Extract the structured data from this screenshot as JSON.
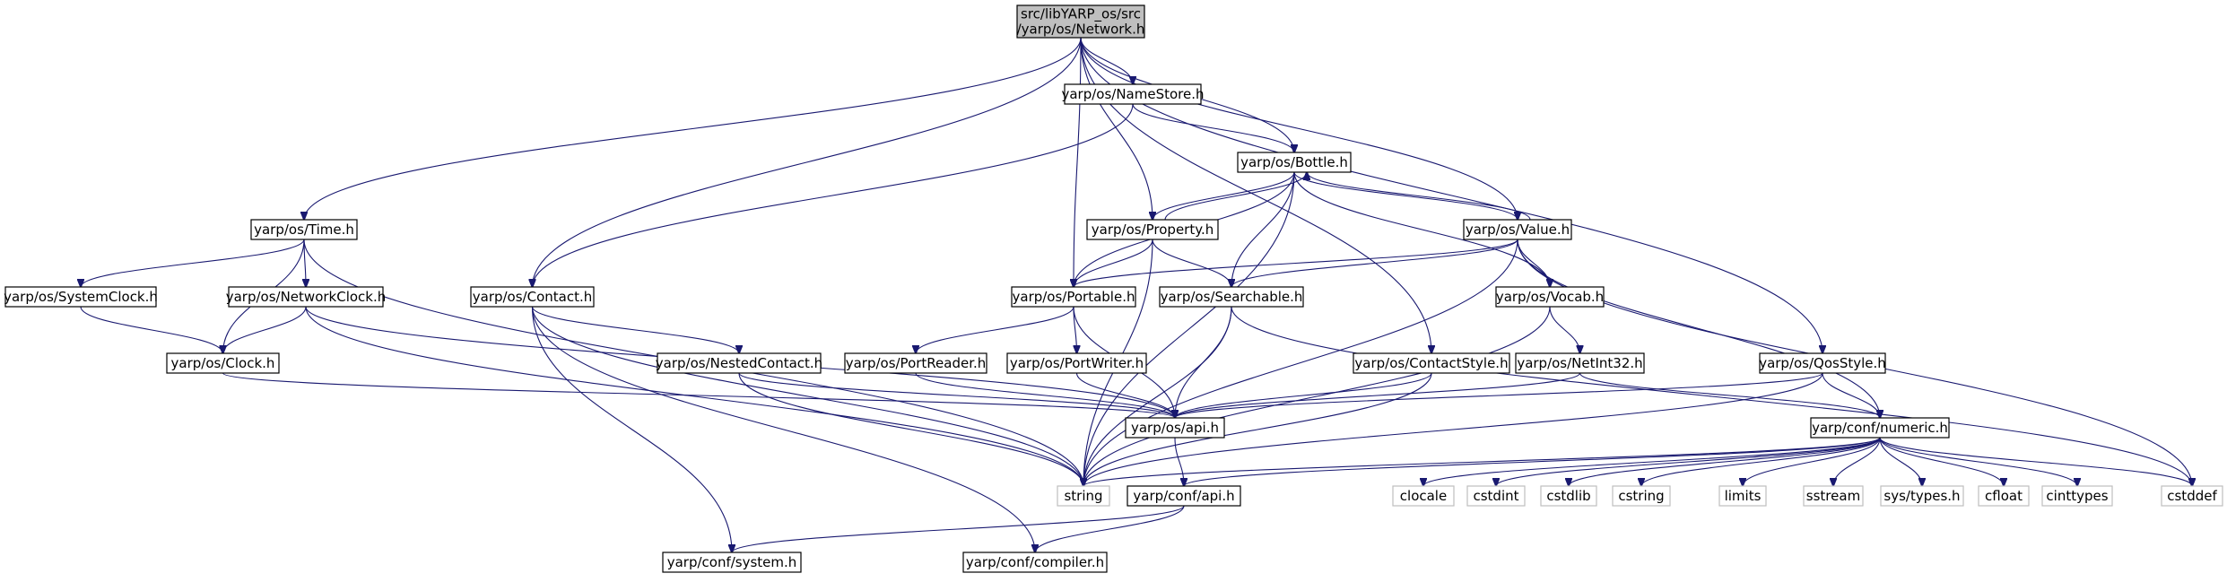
{
  "diagram": {
    "type": "include-dependency-graph",
    "colors": {
      "root_fill": "#bfbfbf",
      "node_border": "#000000",
      "system_border": "#bfbfbf",
      "edge": "#191970",
      "background": "#ffffff"
    },
    "nodes": [
      {
        "id": "network",
        "lines": [
          "src/libYARP_os/src",
          "/yarp/os/Network.h"
        ],
        "kind": "root"
      },
      {
        "id": "namestore",
        "lines": [
          "yarp/os/NameStore.h"
        ],
        "kind": "header"
      },
      {
        "id": "bottle",
        "lines": [
          "yarp/os/Bottle.h"
        ],
        "kind": "header"
      },
      {
        "id": "time",
        "lines": [
          "yarp/os/Time.h"
        ],
        "kind": "header"
      },
      {
        "id": "property",
        "lines": [
          "yarp/os/Property.h"
        ],
        "kind": "header"
      },
      {
        "id": "value",
        "lines": [
          "yarp/os/Value.h"
        ],
        "kind": "header"
      },
      {
        "id": "systemclock",
        "lines": [
          "yarp/os/SystemClock.h"
        ],
        "kind": "header"
      },
      {
        "id": "networkclock",
        "lines": [
          "yarp/os/NetworkClock.h"
        ],
        "kind": "header"
      },
      {
        "id": "contact",
        "lines": [
          "yarp/os/Contact.h"
        ],
        "kind": "header"
      },
      {
        "id": "portable",
        "lines": [
          "yarp/os/Portable.h"
        ],
        "kind": "header"
      },
      {
        "id": "searchable",
        "lines": [
          "yarp/os/Searchable.h"
        ],
        "kind": "header"
      },
      {
        "id": "vocab",
        "lines": [
          "yarp/os/Vocab.h"
        ],
        "kind": "header"
      },
      {
        "id": "clock",
        "lines": [
          "yarp/os/Clock.h"
        ],
        "kind": "header"
      },
      {
        "id": "nestedcontact",
        "lines": [
          "yarp/os/NestedContact.h"
        ],
        "kind": "header"
      },
      {
        "id": "portreader",
        "lines": [
          "yarp/os/PortReader.h"
        ],
        "kind": "header"
      },
      {
        "id": "portwriter",
        "lines": [
          "yarp/os/PortWriter.h"
        ],
        "kind": "header"
      },
      {
        "id": "contactstyle",
        "lines": [
          "yarp/os/ContactStyle.h"
        ],
        "kind": "header"
      },
      {
        "id": "netint32",
        "lines": [
          "yarp/os/NetInt32.h"
        ],
        "kind": "header"
      },
      {
        "id": "qosstyle",
        "lines": [
          "yarp/os/QosStyle.h"
        ],
        "kind": "header"
      },
      {
        "id": "osapi",
        "lines": [
          "yarp/os/api.h"
        ],
        "kind": "header"
      },
      {
        "id": "numeric",
        "lines": [
          "yarp/conf/numeric.h"
        ],
        "kind": "header"
      },
      {
        "id": "string",
        "lines": [
          "string"
        ],
        "kind": "system"
      },
      {
        "id": "confapi",
        "lines": [
          "yarp/conf/api.h"
        ],
        "kind": "header"
      },
      {
        "id": "clocale",
        "lines": [
          "clocale"
        ],
        "kind": "system"
      },
      {
        "id": "cstdint",
        "lines": [
          "cstdint"
        ],
        "kind": "system"
      },
      {
        "id": "cstdlib",
        "lines": [
          "cstdlib"
        ],
        "kind": "system"
      },
      {
        "id": "cstring",
        "lines": [
          "cstring"
        ],
        "kind": "system"
      },
      {
        "id": "limits",
        "lines": [
          "limits"
        ],
        "kind": "system"
      },
      {
        "id": "sstream",
        "lines": [
          "sstream"
        ],
        "kind": "system"
      },
      {
        "id": "systypes",
        "lines": [
          "sys/types.h"
        ],
        "kind": "system"
      },
      {
        "id": "cfloat",
        "lines": [
          "cfloat"
        ],
        "kind": "system"
      },
      {
        "id": "cinttypes",
        "lines": [
          "cinttypes"
        ],
        "kind": "system"
      },
      {
        "id": "cstddef",
        "lines": [
          "cstddef"
        ],
        "kind": "system"
      },
      {
        "id": "confsystem",
        "lines": [
          "yarp/conf/system.h"
        ],
        "kind": "header"
      },
      {
        "id": "confcompiler",
        "lines": [
          "yarp/conf/compiler.h"
        ],
        "kind": "header"
      }
    ],
    "edges": [
      [
        "network",
        "namestore"
      ],
      [
        "network",
        "bottle"
      ],
      [
        "network",
        "time"
      ],
      [
        "network",
        "property"
      ],
      [
        "network",
        "value"
      ],
      [
        "network",
        "contact"
      ],
      [
        "network",
        "portable"
      ],
      [
        "network",
        "contactstyle"
      ],
      [
        "network",
        "qosstyle"
      ],
      [
        "namestore",
        "bottle"
      ],
      [
        "namestore",
        "contact"
      ],
      [
        "bottle",
        "property"
      ],
      [
        "bottle",
        "value"
      ],
      [
        "bottle",
        "portable"
      ],
      [
        "bottle",
        "searchable"
      ],
      [
        "bottle",
        "vocab"
      ],
      [
        "bottle",
        "string"
      ],
      [
        "property",
        "bottle"
      ],
      [
        "property",
        "portable"
      ],
      [
        "property",
        "searchable"
      ],
      [
        "property",
        "string"
      ],
      [
        "value",
        "bottle"
      ],
      [
        "value",
        "portable"
      ],
      [
        "value",
        "searchable"
      ],
      [
        "value",
        "vocab"
      ],
      [
        "value",
        "string"
      ],
      [
        "value",
        "numeric"
      ],
      [
        "value",
        "cstddef"
      ],
      [
        "time",
        "systemclock"
      ],
      [
        "time",
        "networkclock"
      ],
      [
        "time",
        "clock"
      ],
      [
        "time",
        "string"
      ],
      [
        "systemclock",
        "clock"
      ],
      [
        "networkclock",
        "clock"
      ],
      [
        "networkclock",
        "osapi"
      ],
      [
        "networkclock",
        "string"
      ],
      [
        "clock",
        "osapi"
      ],
      [
        "contact",
        "nestedcontact"
      ],
      [
        "contact",
        "string"
      ],
      [
        "contact",
        "confsystem"
      ],
      [
        "contact",
        "confcompiler"
      ],
      [
        "nestedcontact",
        "osapi"
      ],
      [
        "nestedcontact",
        "string"
      ],
      [
        "portable",
        "portreader"
      ],
      [
        "portable",
        "portwriter"
      ],
      [
        "portable",
        "osapi"
      ],
      [
        "portreader",
        "osapi"
      ],
      [
        "portwriter",
        "osapi"
      ],
      [
        "searchable",
        "osapi"
      ],
      [
        "searchable",
        "string"
      ],
      [
        "searchable",
        "cstddef"
      ],
      [
        "vocab",
        "netint32"
      ],
      [
        "vocab",
        "string"
      ],
      [
        "netint32",
        "osapi"
      ],
      [
        "netint32",
        "numeric"
      ],
      [
        "contactstyle",
        "osapi"
      ],
      [
        "contactstyle",
        "string"
      ],
      [
        "qosstyle",
        "osapi"
      ],
      [
        "qosstyle",
        "numeric"
      ],
      [
        "qosstyle",
        "string"
      ],
      [
        "osapi",
        "confapi"
      ],
      [
        "numeric",
        "string"
      ],
      [
        "numeric",
        "confapi"
      ],
      [
        "numeric",
        "clocale"
      ],
      [
        "numeric",
        "cstdint"
      ],
      [
        "numeric",
        "cstdlib"
      ],
      [
        "numeric",
        "cstring"
      ],
      [
        "numeric",
        "limits"
      ],
      [
        "numeric",
        "sstream"
      ],
      [
        "numeric",
        "systypes"
      ],
      [
        "numeric",
        "cfloat"
      ],
      [
        "numeric",
        "cinttypes"
      ],
      [
        "numeric",
        "cstddef"
      ],
      [
        "confapi",
        "confsystem"
      ],
      [
        "confapi",
        "confcompiler"
      ]
    ]
  }
}
